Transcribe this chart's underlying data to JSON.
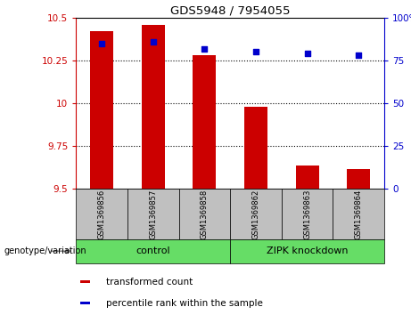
{
  "title": "GDS5948 / 7954055",
  "samples": [
    "GSM1369856",
    "GSM1369857",
    "GSM1369858",
    "GSM1369862",
    "GSM1369863",
    "GSM1369864"
  ],
  "transformed_counts": [
    10.42,
    10.46,
    10.28,
    9.98,
    9.635,
    9.615
  ],
  "percentile_ranks": [
    85,
    86,
    82,
    80,
    79,
    78
  ],
  "ylim_left": [
    9.5,
    10.5
  ],
  "ylim_right": [
    0,
    100
  ],
  "yticks_left": [
    9.5,
    9.75,
    10.0,
    10.25,
    10.5
  ],
  "yticks_right": [
    0,
    25,
    50,
    75,
    100
  ],
  "bar_color": "#CC0000",
  "dot_color": "#0000CC",
  "bar_width": 0.45,
  "groups": [
    {
      "label": "control",
      "indices": [
        0,
        1,
        2
      ],
      "color": "#66DD66"
    },
    {
      "label": "ZIPK knockdown",
      "indices": [
        3,
        4,
        5
      ],
      "color": "#66DD66"
    }
  ],
  "group_row_label": "genotype/variation",
  "legend_items": [
    {
      "label": "transformed count",
      "color": "#CC0000"
    },
    {
      "label": "percentile rank within the sample",
      "color": "#0000CC"
    }
  ],
  "grid_color": "black",
  "plot_bg": "#FFFFFF",
  "tick_bg": "#C0C0C0",
  "axis_left_color": "#CC0000",
  "axis_right_color": "#0000CC",
  "xlim": [
    -0.5,
    5.5
  ]
}
